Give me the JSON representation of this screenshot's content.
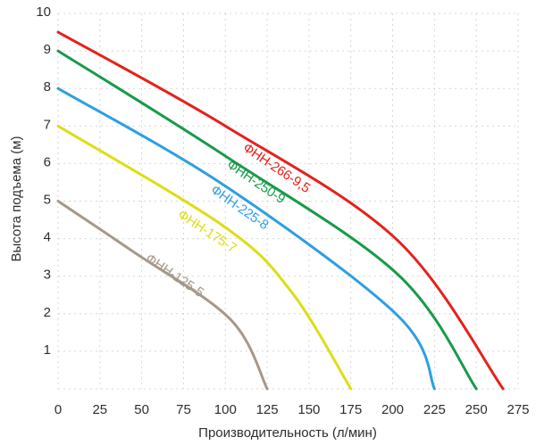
{
  "page": {
    "background": "#ffffff",
    "text_color": "#2d2d2d"
  },
  "chart_data": {
    "type": "line",
    "title": "",
    "xlabel": "Производительность (л/мин)",
    "ylabel": "Высота подъема (м)",
    "xlim": [
      0,
      275
    ],
    "ylim": [
      0,
      10
    ],
    "xticks": [
      0,
      25,
      50,
      75,
      100,
      125,
      150,
      175,
      200,
      225,
      250,
      275
    ],
    "yticks": [
      1,
      2,
      3,
      4,
      5,
      6,
      7,
      8,
      9,
      10
    ],
    "grid": {
      "show": true,
      "line_style": "dashed",
      "color": "#d5d5d5"
    },
    "legend_position": "labels-on-curves",
    "series": [
      {
        "name": "ФНН-266-9,5",
        "color": "#e1231d",
        "head_at_zero_flow_m": 9.5,
        "max_flow_l_min": 266,
        "points": [
          [
            0,
            9.5
          ],
          [
            100,
            7.0
          ],
          [
            203,
            3.95
          ],
          [
            266,
            0
          ]
        ]
      },
      {
        "name": "ФНН-250-9",
        "color": "#189a49",
        "head_at_zero_flow_m": 9.0,
        "max_flow_l_min": 250,
        "points": [
          [
            0,
            9.0
          ],
          [
            100,
            6.2
          ],
          [
            203,
            3.05
          ],
          [
            250,
            0
          ]
        ]
      },
      {
        "name": "ФНН-225-8",
        "color": "#2e9fe0",
        "head_at_zero_flow_m": 8.0,
        "max_flow_l_min": 225,
        "points": [
          [
            0,
            8.0
          ],
          [
            100,
            5.4
          ],
          [
            203,
            1.95
          ],
          [
            225,
            0
          ]
        ]
      },
      {
        "name": "ФНН-175-7",
        "color": "#dddd16",
        "head_at_zero_flow_m": 7.0,
        "max_flow_l_min": 175,
        "points": [
          [
            0,
            7.0
          ],
          [
            100,
            4.3
          ],
          [
            140,
            2.55
          ],
          [
            175,
            0
          ]
        ]
      },
      {
        "name": "ФНН-125-5",
        "color": "#a69889",
        "head_at_zero_flow_m": 5.0,
        "max_flow_l_min": 125,
        "points": [
          [
            0,
            5.0
          ],
          [
            45,
            3.65
          ],
          [
            103,
            1.85
          ],
          [
            125,
            0
          ]
        ]
      }
    ]
  }
}
